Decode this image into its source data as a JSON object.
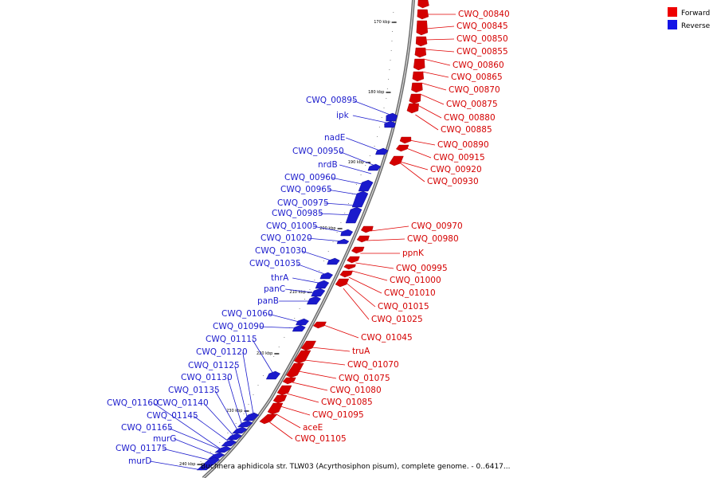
{
  "legend": [
    {
      "label": "Forward",
      "color": "#ee0000"
    },
    {
      "label": "Reverse",
      "color": "#1414e6"
    }
  ],
  "caption": "Buchnera aphidicola str. TLW03 (Acyrthosiphon pisum), complete genome. - 0..6417...",
  "ticks": [
    "170 kbp",
    "180 kbp",
    "190 kbp",
    "200 kbp",
    "210 kbp",
    "220 kbp",
    "230 kbp",
    "240 kbp"
  ],
  "forward_labels": [
    "CWQ_00840",
    "CWQ_00845",
    "CWQ_00850",
    "CWQ_00855",
    "CWQ_00860",
    "CWQ_00865",
    "CWQ_00870",
    "CWQ_00875",
    "CWQ_00880",
    "CWQ_00885",
    "CWQ_00890",
    "CWQ_00915",
    "CWQ_00920",
    "CWQ_00930",
    "CWQ_00970",
    "CWQ_00980",
    "ppnK",
    "CWQ_00995",
    "CWQ_01000",
    "CWQ_01010",
    "CWQ_01015",
    "CWQ_01025",
    "CWQ_01045",
    "truA",
    "CWQ_01070",
    "CWQ_01075",
    "CWQ_01080",
    "CWQ_01085",
    "CWQ_01095",
    "aceE",
    "CWQ_01105"
  ],
  "reverse_labels": [
    "CWQ_00895",
    "ipk",
    "nadE",
    "CWQ_00950",
    "nrdB",
    "CWQ_00960",
    "CWQ_00965",
    "CWQ_00975",
    "CWQ_00985",
    "CWQ_01005",
    "CWQ_01020",
    "CWQ_01030",
    "CWQ_01035",
    "thrA",
    "panC",
    "panB",
    "CWQ_01060",
    "CWQ_01090",
    "CWQ_01115",
    "CWQ_01120",
    "CWQ_01125",
    "CWQ_01130",
    "CWQ_01135",
    "CWQ_01140",
    "CWQ_01160",
    "CWQ_01145",
    "CWQ_01165",
    "murG",
    "CWQ_01175",
    "murD"
  ]
}
